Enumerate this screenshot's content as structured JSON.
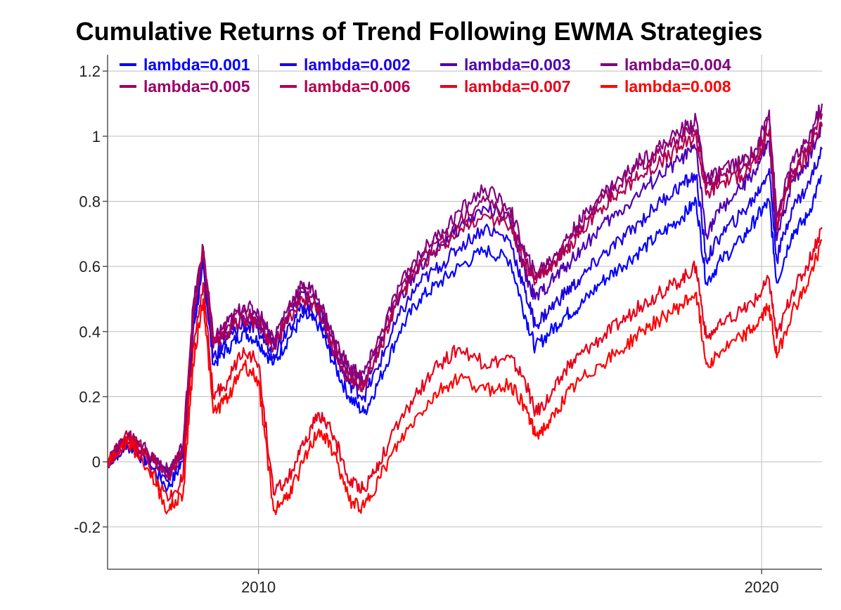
{
  "chart_data": {
    "type": "line",
    "title": "Cumulative Returns of Trend Following EWMA Strategies",
    "xlabel": "",
    "ylabel": "",
    "x_ticks": [
      2010,
      2020
    ],
    "y_ticks": [
      -0.2,
      0,
      0.2,
      0.4,
      0.6,
      0.8,
      1,
      1.2
    ],
    "y_tick_labels": [
      "-0.2",
      "0",
      "0.2",
      "0.4",
      "0.6",
      "0.8",
      "1",
      "1.2"
    ],
    "x_tick_labels": [
      "2010",
      "2020"
    ],
    "xlim": [
      2007.0,
      2021.2
    ],
    "ylim": [
      -0.33,
      1.25
    ],
    "grid": true,
    "legend_position": "top",
    "x": [
      2007.0,
      2007.4,
      2007.8,
      2008.2,
      2008.5,
      2008.7,
      2008.9,
      2009.1,
      2009.4,
      2009.7,
      2010.0,
      2010.3,
      2010.6,
      2010.9,
      2011.2,
      2011.5,
      2011.8,
      2012.1,
      2012.4,
      2012.8,
      2013.2,
      2013.6,
      2014.0,
      2014.5,
      2015.0,
      2015.3,
      2015.5,
      2015.8,
      2016.1,
      2016.4,
      2016.8,
      2017.2,
      2017.6,
      2018.0,
      2018.4,
      2018.7,
      2018.9,
      2019.2,
      2019.6,
      2019.9,
      2020.15,
      2020.3,
      2020.6,
      2020.9,
      2021.2
    ],
    "series": [
      {
        "name": "lambda=0.001",
        "color": "#0000ff",
        "values": [
          0.0,
          0.05,
          0.0,
          -0.08,
          0.0,
          0.4,
          0.6,
          0.3,
          0.35,
          0.4,
          0.37,
          0.3,
          0.38,
          0.45,
          0.42,
          0.3,
          0.2,
          0.15,
          0.25,
          0.4,
          0.5,
          0.55,
          0.6,
          0.65,
          0.62,
          0.45,
          0.35,
          0.4,
          0.45,
          0.48,
          0.55,
          0.6,
          0.65,
          0.7,
          0.75,
          0.8,
          0.55,
          0.62,
          0.68,
          0.75,
          0.8,
          0.55,
          0.7,
          0.75,
          0.88
        ]
      },
      {
        "name": "lambda=0.002",
        "color": "#1a00e6",
        "values": [
          0.0,
          0.06,
          0.01,
          -0.06,
          0.02,
          0.42,
          0.62,
          0.32,
          0.38,
          0.42,
          0.4,
          0.33,
          0.42,
          0.48,
          0.45,
          0.33,
          0.24,
          0.2,
          0.3,
          0.45,
          0.55,
          0.6,
          0.66,
          0.72,
          0.68,
          0.52,
          0.42,
          0.47,
          0.52,
          0.56,
          0.63,
          0.68,
          0.74,
          0.8,
          0.85,
          0.88,
          0.62,
          0.7,
          0.76,
          0.82,
          0.9,
          0.62,
          0.78,
          0.84,
          0.96
        ]
      },
      {
        "name": "lambda=0.003",
        "color": "#4d00b3",
        "values": [
          0.0,
          0.07,
          0.02,
          -0.04,
          0.04,
          0.45,
          0.64,
          0.35,
          0.4,
          0.45,
          0.43,
          0.36,
          0.45,
          0.52,
          0.48,
          0.36,
          0.27,
          0.24,
          0.35,
          0.5,
          0.6,
          0.66,
          0.72,
          0.78,
          0.74,
          0.58,
          0.5,
          0.55,
          0.6,
          0.65,
          0.72,
          0.77,
          0.83,
          0.88,
          0.93,
          0.96,
          0.7,
          0.78,
          0.84,
          0.9,
          0.98,
          0.68,
          0.86,
          0.92,
          1.03
        ]
      },
      {
        "name": "lambda=0.004",
        "color": "#800080",
        "values": [
          0.0,
          0.08,
          0.03,
          -0.03,
          0.05,
          0.48,
          0.66,
          0.38,
          0.43,
          0.48,
          0.46,
          0.38,
          0.48,
          0.55,
          0.5,
          0.38,
          0.29,
          0.27,
          0.38,
          0.54,
          0.64,
          0.7,
          0.77,
          0.84,
          0.78,
          0.64,
          0.58,
          0.62,
          0.68,
          0.74,
          0.82,
          0.87,
          0.93,
          0.97,
          1.02,
          1.05,
          0.86,
          0.9,
          0.92,
          0.96,
          1.08,
          0.75,
          0.92,
          0.98,
          1.1
        ]
      },
      {
        "name": "lambda=0.005",
        "color": "#99006a",
        "values": [
          0.0,
          0.08,
          0.03,
          -0.04,
          0.04,
          0.46,
          0.65,
          0.37,
          0.42,
          0.46,
          0.44,
          0.37,
          0.46,
          0.53,
          0.48,
          0.36,
          0.27,
          0.25,
          0.36,
          0.52,
          0.62,
          0.68,
          0.74,
          0.8,
          0.75,
          0.62,
          0.56,
          0.6,
          0.66,
          0.72,
          0.8,
          0.85,
          0.91,
          0.95,
          1.0,
          1.02,
          0.84,
          0.88,
          0.9,
          0.94,
          1.05,
          0.73,
          0.9,
          0.96,
          1.07
        ]
      },
      {
        "name": "lambda=0.006",
        "color": "#b3004d",
        "values": [
          0.0,
          0.08,
          0.03,
          -0.05,
          0.03,
          0.44,
          0.64,
          0.36,
          0.4,
          0.44,
          0.42,
          0.35,
          0.44,
          0.5,
          0.46,
          0.34,
          0.25,
          0.23,
          0.34,
          0.5,
          0.6,
          0.65,
          0.71,
          0.76,
          0.72,
          0.6,
          0.55,
          0.6,
          0.65,
          0.7,
          0.78,
          0.83,
          0.88,
          0.92,
          0.97,
          1.0,
          0.82,
          0.86,
          0.88,
          0.92,
          1.02,
          0.72,
          0.88,
          0.94,
          1.04
        ]
      },
      {
        "name": "lambda=0.007",
        "color": "#e6001a",
        "values": [
          0.0,
          0.07,
          0.0,
          -0.12,
          -0.05,
          0.35,
          0.55,
          0.2,
          0.25,
          0.35,
          0.3,
          -0.1,
          -0.05,
          0.05,
          0.15,
          0.08,
          -0.06,
          -0.08,
          0.0,
          0.12,
          0.22,
          0.3,
          0.35,
          0.3,
          0.32,
          0.25,
          0.15,
          0.2,
          0.28,
          0.33,
          0.38,
          0.43,
          0.48,
          0.52,
          0.56,
          0.6,
          0.38,
          0.42,
          0.46,
          0.5,
          0.56,
          0.38,
          0.52,
          0.6,
          0.72
        ]
      },
      {
        "name": "lambda=0.008",
        "color": "#ff0000",
        "values": [
          0.0,
          0.06,
          -0.02,
          -0.15,
          -0.1,
          0.3,
          0.5,
          0.15,
          0.2,
          0.3,
          0.25,
          -0.15,
          -0.1,
          0.0,
          0.1,
          0.03,
          -0.12,
          -0.14,
          -0.05,
          0.06,
          0.15,
          0.22,
          0.26,
          0.22,
          0.24,
          0.17,
          0.08,
          0.12,
          0.2,
          0.25,
          0.3,
          0.34,
          0.4,
          0.44,
          0.48,
          0.52,
          0.3,
          0.34,
          0.38,
          0.42,
          0.48,
          0.32,
          0.46,
          0.54,
          0.68
        ]
      }
    ]
  }
}
